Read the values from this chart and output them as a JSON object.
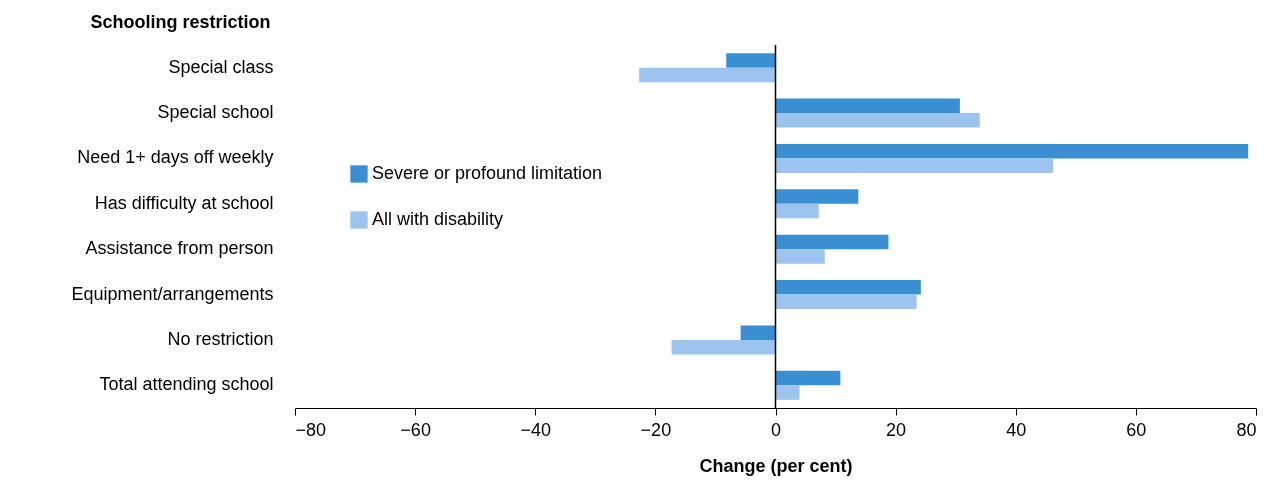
{
  "chart_data": {
    "type": "bar",
    "orientation": "horizontal",
    "xlabel": "Change (per cent)",
    "ylabel": "Schooling restriction",
    "categories": [
      "Special class",
      "Special school",
      "Need 1+ days off weekly",
      "Has difficulty at school",
      "Assistance from person",
      "Equipment/arrangements",
      "No restriction",
      "Total attending school"
    ],
    "series": [
      {
        "name": "Severe or profound limitation",
        "color": "#3a8ed2",
        "values": [
          -8.2,
          30.7,
          78.7,
          13.8,
          18.8,
          24.2,
          -5.8,
          10.8
        ]
      },
      {
        "name": "All with disability",
        "color": "#9cc4ee",
        "values": [
          -22.7,
          34,
          46.2,
          7.2,
          8.2,
          23.5,
          -17.3,
          4
        ]
      }
    ],
    "xlim": [
      -80,
      80
    ],
    "xticks": [
      -80,
      -60,
      -40,
      -20,
      0,
      20,
      40,
      60,
      80
    ],
    "ref_lines": [
      {
        "axis": "x",
        "value": 0,
        "color": "#000000"
      }
    ],
    "grid": false,
    "legend": "left"
  }
}
